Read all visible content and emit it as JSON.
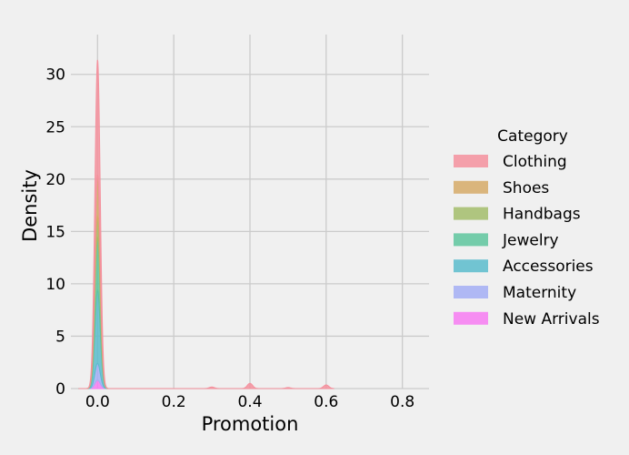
{
  "chart_data": {
    "type": "area",
    "subtype": "stacked kde density",
    "xlabel": "Promotion",
    "ylabel": "Density",
    "xlim": [
      -0.07,
      0.87
    ],
    "ylim": [
      0,
      33.8
    ],
    "xticks": [
      0.0,
      0.2,
      0.4,
      0.6,
      0.8
    ],
    "xtick_labels": [
      "0.0",
      "0.2",
      "0.4",
      "0.6",
      "0.8"
    ],
    "yticks": [
      0,
      5,
      10,
      15,
      20,
      25,
      30
    ],
    "ytick_labels": [
      "0",
      "5",
      "10",
      "15",
      "20",
      "25",
      "30"
    ],
    "grid": true,
    "legend": {
      "title": "Category",
      "placement": "right"
    },
    "series": [
      {
        "name": "New Arrivals",
        "color": "#f77bf2",
        "peaks": [
          {
            "x": 0.0,
            "y": 0.8,
            "width": 0.007
          }
        ]
      },
      {
        "name": "Maternity",
        "color": "#a3aef4",
        "peaks": [
          {
            "x": 0.0,
            "y": 1.6,
            "width": 0.007
          }
        ]
      },
      {
        "name": "Accessories",
        "color": "#5bbccc",
        "peaks": [
          {
            "x": 0.0,
            "y": 7.0,
            "width": 0.007
          }
        ]
      },
      {
        "name": "Jewelry",
        "color": "#5ec59d",
        "peaks": [
          {
            "x": 0.0,
            "y": 5.0,
            "width": 0.007
          }
        ]
      },
      {
        "name": "Handbags",
        "color": "#a3bd6b",
        "peaks": [
          {
            "x": 0.0,
            "y": 2.0,
            "width": 0.007
          }
        ]
      },
      {
        "name": "Shoes",
        "color": "#d6aa67",
        "peaks": [
          {
            "x": 0.0,
            "y": 4.0,
            "width": 0.007
          }
        ]
      },
      {
        "name": "Clothing",
        "color": "#f4919d",
        "peaks": [
          {
            "x": 0.0,
            "y": 11.0,
            "width": 0.007
          },
          {
            "x": 0.3,
            "y": 0.15,
            "width": 0.007
          },
          {
            "x": 0.4,
            "y": 0.5,
            "width": 0.007
          },
          {
            "x": 0.5,
            "y": 0.1,
            "width": 0.007
          },
          {
            "x": 0.6,
            "y": 0.35,
            "width": 0.007
          }
        ]
      }
    ]
  }
}
